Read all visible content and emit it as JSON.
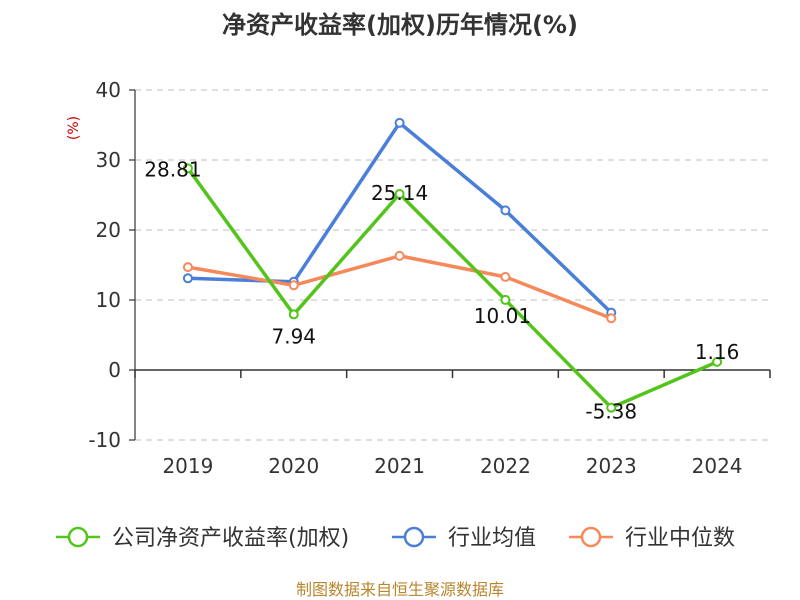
{
  "chart_data": {
    "type": "line",
    "title": "净资产收益率(加权)历年情况(%)",
    "ylabel": "(%)",
    "ylabel_color": "#cc0000",
    "categories": [
      "2019",
      "2020",
      "2021",
      "2022",
      "2023",
      "2024"
    ],
    "ylim": [
      -10,
      40
    ],
    "yticks": [
      -10,
      0,
      10,
      20,
      30,
      40
    ],
    "grid": true,
    "legend_position": "bottom",
    "series": [
      {
        "name": "公司净资产收益率(加权)",
        "color": "#52c41a",
        "values": [
          28.81,
          7.94,
          25.14,
          10.01,
          -5.38,
          1.16
        ],
        "labels": [
          "28.81",
          "7.94",
          "25.14",
          "10.01",
          "-5.38",
          "1.16"
        ]
      },
      {
        "name": "行业均值",
        "color": "#4a7fd8",
        "values": [
          13.1,
          12.6,
          35.3,
          22.8,
          8.2,
          null
        ]
      },
      {
        "name": "行业中位数",
        "color": "#f5895a",
        "values": [
          14.7,
          12.1,
          16.3,
          13.3,
          7.4,
          null
        ]
      }
    ]
  },
  "source": {
    "text": "制图数据来自恒生聚源数据库",
    "color": "#b8862f"
  }
}
